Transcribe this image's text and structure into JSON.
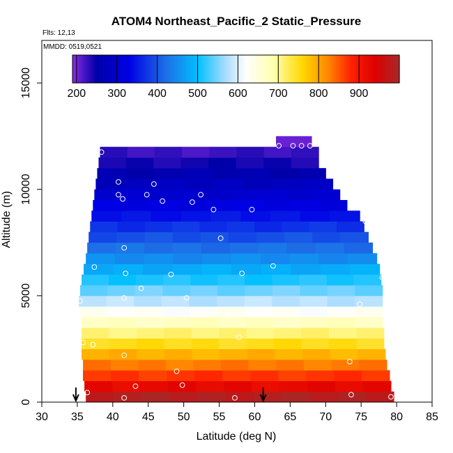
{
  "chart_data": {
    "type": "heatmap",
    "title": "ATOM4 Northeast_Pacific_2 Static_Pressure",
    "annotations": {
      "flights": "Flts: 12,13",
      "dates": "MMDD: 0519,0521"
    },
    "xlabel": "Latitude (deg N)",
    "ylabel": "Altitude (m)",
    "xlim": [
      30,
      85
    ],
    "ylim": [
      0,
      17000
    ],
    "x_ticks": [
      "30",
      "35",
      "40",
      "45",
      "50",
      "55",
      "60",
      "65",
      "70",
      "75",
      "80",
      "85"
    ],
    "x_tick_values": [
      30,
      35,
      40,
      45,
      50,
      55,
      60,
      65,
      70,
      75,
      80,
      85
    ],
    "y_ticks": [
      "0",
      "5000",
      "10000",
      "15000"
    ],
    "y_tick_values": [
      0,
      5000,
      10000,
      15000
    ],
    "colorbar": {
      "min": 190,
      "max": 1000,
      "tick_labels": [
        "200",
        "300",
        "400",
        "500",
        "600",
        "700",
        "800",
        "900"
      ],
      "tick_values": [
        200,
        300,
        400,
        500,
        600,
        700,
        800,
        900
      ],
      "color_stops": [
        {
          "v": 190,
          "c": "#8a2be2"
        },
        {
          "v": 250,
          "c": "#0000a8"
        },
        {
          "v": 330,
          "c": "#0000e6"
        },
        {
          "v": 420,
          "c": "#1e6ee6"
        },
        {
          "v": 500,
          "c": "#00bfff"
        },
        {
          "v": 570,
          "c": "#aadcff"
        },
        {
          "v": 620,
          "c": "#ffffff"
        },
        {
          "v": 690,
          "c": "#ffffaa"
        },
        {
          "v": 760,
          "c": "#ffd700"
        },
        {
          "v": 820,
          "c": "#ff8c00"
        },
        {
          "v": 880,
          "c": "#ff2200"
        },
        {
          "v": 940,
          "c": "#dd0000"
        },
        {
          "v": 1000,
          "c": "#a52a2a"
        }
      ]
    },
    "rows": [
      {
        "alt": 500,
        "x0": 36.2,
        "x1": 79.6,
        "value": 985
      },
      {
        "alt": 1000,
        "x0": 36.0,
        "x1": 79.2,
        "value": 925
      },
      {
        "alt": 1500,
        "x0": 35.8,
        "x1": 79.0,
        "value": 870
      },
      {
        "alt": 2000,
        "x0": 35.8,
        "x1": 78.6,
        "value": 830
      },
      {
        "alt": 2500,
        "x0": 35.6,
        "x1": 78.4,
        "value": 790
      },
      {
        "alt": 3000,
        "x0": 35.6,
        "x1": 78.2,
        "value": 750
      },
      {
        "alt": 3500,
        "x0": 35.6,
        "x1": 78.2,
        "value": 710
      },
      {
        "alt": 4000,
        "x0": 35.6,
        "x1": 78.0,
        "value": 670
      },
      {
        "alt": 4500,
        "x0": 35.4,
        "x1": 78.0,
        "value": 625
      },
      {
        "alt": 5000,
        "x0": 35.2,
        "x1": 78.0,
        "value": 580
      },
      {
        "alt": 5500,
        "x0": 35.4,
        "x1": 78.0,
        "value": 545
      },
      {
        "alt": 6000,
        "x0": 35.6,
        "x1": 77.8,
        "value": 510
      },
      {
        "alt": 6500,
        "x0": 35.9,
        "x1": 77.6,
        "value": 480
      },
      {
        "alt": 7000,
        "x0": 36.2,
        "x1": 77.2,
        "value": 450
      },
      {
        "alt": 7500,
        "x0": 36.4,
        "x1": 76.6,
        "value": 422
      },
      {
        "alt": 8000,
        "x0": 36.6,
        "x1": 76.0,
        "value": 395
      },
      {
        "alt": 8500,
        "x0": 36.8,
        "x1": 75.4,
        "value": 370
      },
      {
        "alt": 9000,
        "x0": 37.0,
        "x1": 74.8,
        "value": 345
      },
      {
        "alt": 9500,
        "x0": 37.2,
        "x1": 73.0,
        "value": 322
      },
      {
        "alt": 10000,
        "x0": 37.4,
        "x1": 72.0,
        "value": 300
      },
      {
        "alt": 10500,
        "x0": 37.6,
        "x1": 71.0,
        "value": 280
      },
      {
        "alt": 11000,
        "x0": 37.8,
        "x1": 70.0,
        "value": 262
      },
      {
        "alt": 11500,
        "x0": 38.0,
        "x1": 69.0,
        "value": 243
      },
      {
        "alt": 12000,
        "x0": 38.2,
        "x1": 69.0,
        "value": 225
      },
      {
        "alt": 12500,
        "x0": 63.0,
        "x1": 68.0,
        "value": 205
      }
    ],
    "points": [
      [
        38.4,
        11750
      ],
      [
        63.4,
        12050
      ],
      [
        65.4,
        12050
      ],
      [
        66.6,
        12050
      ],
      [
        67.8,
        12050
      ],
      [
        40.8,
        10350
      ],
      [
        45.8,
        10250
      ],
      [
        40.8,
        9750
      ],
      [
        44.8,
        9750
      ],
      [
        52.4,
        9750
      ],
      [
        41.4,
        9550
      ],
      [
        47.0,
        9450
      ],
      [
        51.2,
        9400
      ],
      [
        54.2,
        9050
      ],
      [
        59.6,
        9050
      ],
      [
        75.6,
        8500
      ],
      [
        55.2,
        7700
      ],
      [
        41.6,
        7250
      ],
      [
        37.4,
        6350
      ],
      [
        62.6,
        6400
      ],
      [
        41.8,
        6050
      ],
      [
        48.2,
        6000
      ],
      [
        58.2,
        6050
      ],
      [
        78.0,
        5850
      ],
      [
        44.0,
        5350
      ],
      [
        41.6,
        4900
      ],
      [
        50.4,
        4900
      ],
      [
        35.4,
        4750
      ],
      [
        74.8,
        4600
      ],
      [
        56.2,
        4050
      ],
      [
        57.8,
        3050
      ],
      [
        35.8,
        2800
      ],
      [
        37.2,
        2700
      ],
      [
        41.6,
        2200
      ],
      [
        73.4,
        1900
      ],
      [
        49.0,
        1450
      ],
      [
        43.2,
        750
      ],
      [
        49.8,
        800
      ],
      [
        36.4,
        450
      ],
      [
        41.6,
        200
      ],
      [
        57.2,
        200
      ],
      [
        73.6,
        350
      ],
      [
        79.2,
        250
      ]
    ],
    "flight_markers": [
      34.8,
      61.2
    ]
  }
}
